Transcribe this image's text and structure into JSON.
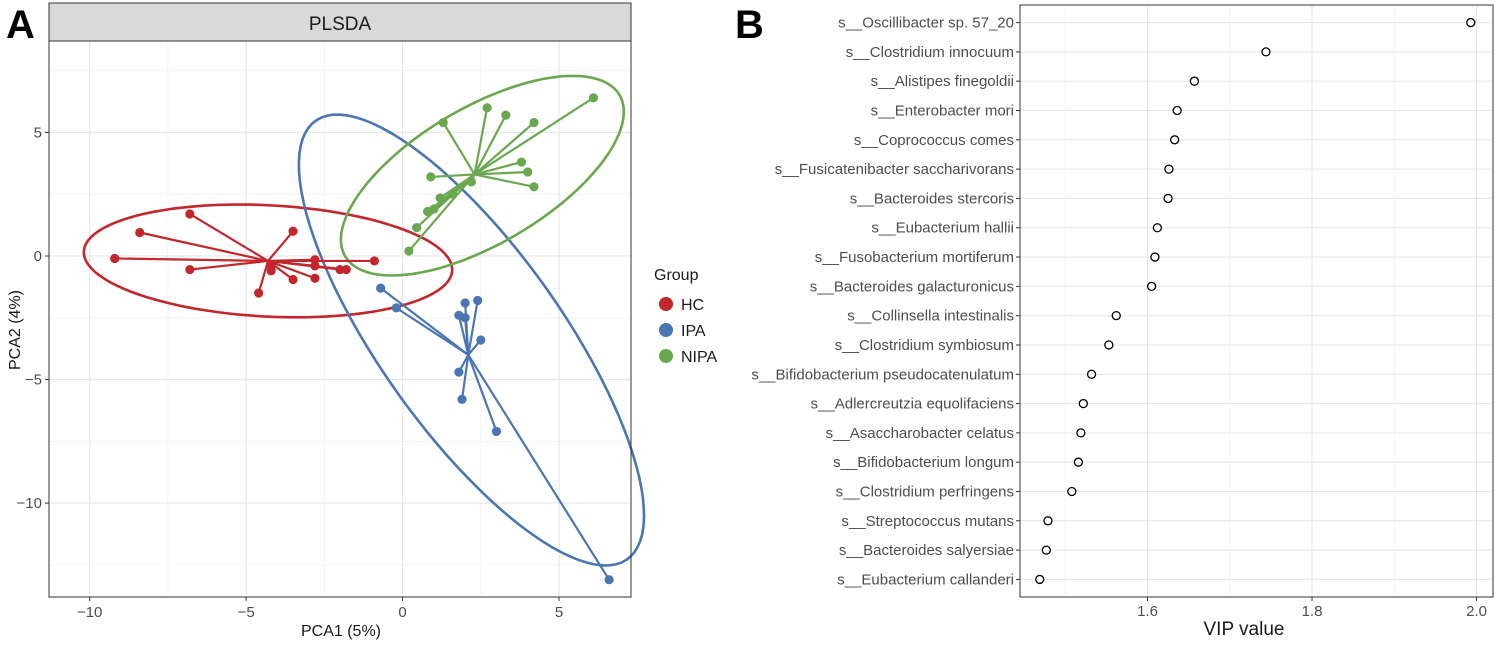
{
  "chart_data": [
    {
      "panel_label": "A",
      "type": "scatter",
      "title": "PLSDA",
      "xlabel": "PCA1 (5%)",
      "ylabel": "PCA2 (4%)",
      "xlim": [
        -11.3,
        7.3
      ],
      "ylim": [
        -13.8,
        8.7
      ],
      "xticks": [
        -10,
        -5,
        0,
        5
      ],
      "yticks": [
        -10,
        -5,
        0,
        5
      ],
      "xtick_labels": [
        "−10",
        "−5",
        "0",
        "5"
      ],
      "ytick_labels": [
        "−10",
        "−5",
        "0",
        "5"
      ],
      "grid": true,
      "legend": {
        "title": "Group",
        "position": "right",
        "entries": [
          "HC",
          "IPA",
          "NIPA"
        ]
      },
      "series": [
        {
          "name": "HC",
          "color": "#c3262b",
          "centroid": [
            -4.3,
            -0.2
          ],
          "ellipse": {
            "cx": -4.3,
            "cy": -0.2,
            "rx": 5.9,
            "ry": 2.25,
            "angle": -4
          },
          "points": [
            [
              -9.2,
              -0.1
            ],
            [
              -8.4,
              0.95
            ],
            [
              -6.8,
              1.7
            ],
            [
              -6.8,
              -0.55
            ],
            [
              -4.6,
              -1.5
            ],
            [
              -4.2,
              -0.6
            ],
            [
              -4.2,
              -0.4
            ],
            [
              -3.5,
              1.0
            ],
            [
              -3.5,
              -0.95
            ],
            [
              -2.8,
              -0.9
            ],
            [
              -2.8,
              -0.4
            ],
            [
              -2.8,
              -0.15
            ],
            [
              -2.0,
              -0.55
            ],
            [
              -1.8,
              -0.55
            ],
            [
              -0.9,
              -0.2
            ]
          ]
        },
        {
          "name": "IPA",
          "color": "#4a76b3",
          "centroid": [
            2.1,
            -4.0
          ],
          "ellipse": {
            "cx": 2.2,
            "cy": -3.4,
            "rx": 10.2,
            "ry": 3.1,
            "angle": -62
          },
          "points": [
            [
              -0.7,
              -1.3
            ],
            [
              -0.2,
              -2.1
            ],
            [
              1.8,
              -2.4
            ],
            [
              2.0,
              -2.5
            ],
            [
              2.0,
              -1.9
            ],
            [
              2.4,
              -1.8
            ],
            [
              2.5,
              -3.4
            ],
            [
              1.8,
              -4.7
            ],
            [
              1.9,
              -5.8
            ],
            [
              3.0,
              -7.1
            ],
            [
              6.6,
              -13.1
            ]
          ]
        },
        {
          "name": "NIPA",
          "color": "#6aa84f",
          "centroid": [
            2.3,
            3.3
          ],
          "ellipse": {
            "cx": 2.55,
            "cy": 3.25,
            "rx": 5.5,
            "ry": 2.55,
            "angle": 40
          },
          "points": [
            [
              0.2,
              0.2
            ],
            [
              0.45,
              1.15
            ],
            [
              0.8,
              1.8
            ],
            [
              1.0,
              1.9
            ],
            [
              0.9,
              3.2
            ],
            [
              1.2,
              2.35
            ],
            [
              1.3,
              5.4
            ],
            [
              1.6,
              2.5
            ],
            [
              2.2,
              3.0
            ],
            [
              2.7,
              6.0
            ],
            [
              3.3,
              5.7
            ],
            [
              3.8,
              3.8
            ],
            [
              4.0,
              3.4
            ],
            [
              4.2,
              2.8
            ],
            [
              4.2,
              5.4
            ],
            [
              6.1,
              6.4
            ]
          ]
        }
      ]
    },
    {
      "panel_label": "B",
      "type": "scatter",
      "xlabel": "VIP value",
      "xlim": [
        1.445,
        2.02
      ],
      "xticks": [
        1.6,
        1.8,
        2.0
      ],
      "xtick_labels": [
        "1.6",
        "1.8",
        "2.0"
      ],
      "grid": true,
      "categories": [
        "s__Oscillibacter sp. 57_20",
        "s__Clostridium innocuum",
        "s__Alistipes finegoldii",
        "s__Enterobacter mori",
        "s__Coprococcus comes",
        "s__Fusicatenibacter saccharivorans",
        "s__Bacteroides stercoris",
        "s__Eubacterium hallii",
        "s__Fusobacterium mortiferum",
        "s__Bacteroides galacturonicus",
        "s__Collinsella intestinalis",
        "s__Clostridium symbiosum",
        "s__Bifidobacterium pseudocatenulatum",
        "s__Adlercreutzia equolifaciens",
        "s__Asaccharobacter celatus",
        "s__Bifidobacterium longum",
        "s__Clostridium perfringens",
        "s__Streptococcus mutans",
        "s__Bacteroides salyersiae",
        "s__Eubacterium callanderi"
      ],
      "values": [
        1.993,
        1.744,
        1.657,
        1.636,
        1.633,
        1.626,
        1.625,
        1.612,
        1.609,
        1.605,
        1.562,
        1.553,
        1.532,
        1.522,
        1.519,
        1.516,
        1.508,
        1.479,
        1.477,
        1.469
      ]
    }
  ]
}
